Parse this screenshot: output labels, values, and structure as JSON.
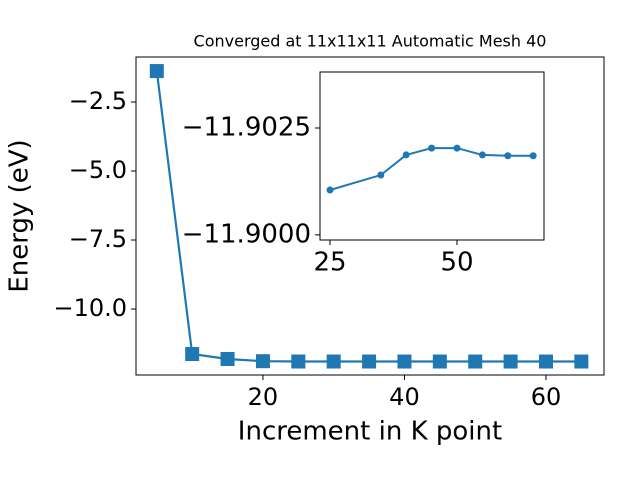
{
  "chart_data": [
    {
      "type": "line",
      "title": "Converged at 11x11x11 Automatic Mesh 40",
      "x_label": "Increment in K point",
      "y_label": "Energy (eV)",
      "x": [
        5,
        10,
        15,
        20,
        25,
        30,
        35,
        40,
        45,
        50,
        55,
        60,
        65
      ],
      "series": [
        {
          "color": "#1f77b4",
          "marker": "square",
          "values": [
            -1.38,
            -11.63,
            -11.81,
            -11.89,
            -11.901,
            -11.9012,
            -11.9014,
            -11.9019,
            -11.902,
            -11.902,
            -11.9019,
            -11.9018,
            -11.9018
          ]
        }
      ],
      "xlim": [
        2.06,
        68.2
      ],
      "ylim": [
        -12.39,
        -0.87
      ],
      "xticks": [
        20,
        40,
        60
      ],
      "yticks": [
        {
          "value": -2.5,
          "label": "−2.5"
        },
        {
          "value": -5.0,
          "label": "−5.0"
        },
        {
          "value": -7.5,
          "label": "−7.5"
        },
        {
          "value": -10.0,
          "label": "−10.0"
        }
      ]
    },
    {
      "type": "line",
      "x": [
        25,
        35,
        40,
        45,
        50,
        55,
        60,
        65
      ],
      "series": [
        {
          "color": "#1f77b4",
          "marker": "circle",
          "values": [
            -11.90105,
            -11.9014,
            -11.90187,
            -11.90203,
            -11.90203,
            -11.90187,
            -11.90185,
            -11.90185
          ]
        }
      ],
      "xlim": [
        23.03,
        67.13
      ],
      "ylim": [
        -11.89988,
        -11.90381
      ],
      "xticks": [
        25,
        50
      ],
      "yticks": [
        {
          "value": -11.9025,
          "label": "−11.9025"
        },
        {
          "value": -11.9,
          "label": "−11.9000"
        }
      ]
    }
  ]
}
